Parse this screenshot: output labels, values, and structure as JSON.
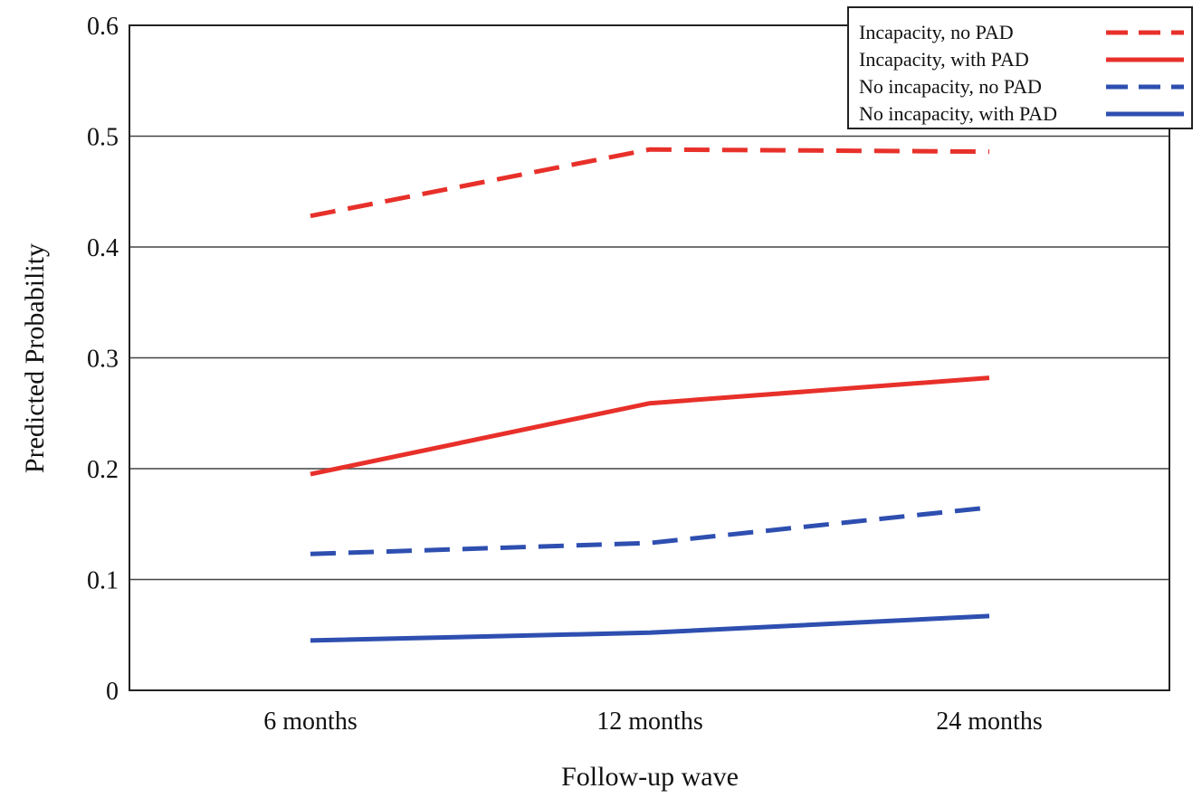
{
  "chart_data": {
    "type": "line",
    "title": "",
    "xlabel": "Follow-up wave",
    "ylabel": "Predicted Probability",
    "categories": [
      "6 months",
      "12 months",
      "24 months"
    ],
    "ylim": [
      0,
      0.6
    ],
    "yticks": [
      "0",
      "0.1",
      "0.2",
      "0.3",
      "0.4",
      "0.5",
      "0.6"
    ],
    "grid": "horizontal",
    "legend_position": "top-right",
    "series": [
      {
        "name": "Incapacity, no PAD",
        "color": "#e8302a",
        "style": "dashed",
        "values": [
          0.428,
          0.488,
          0.486
        ]
      },
      {
        "name": "Incapacity, with PAD",
        "color": "#e8302a",
        "style": "solid",
        "values": [
          0.195,
          0.259,
          0.282
        ]
      },
      {
        "name": "No incapacity, no PAD",
        "color": "#2e4fb0",
        "style": "dashed",
        "values": [
          0.123,
          0.133,
          0.165
        ]
      },
      {
        "name": "No incapacity, with PAD",
        "color": "#2e4fb0",
        "style": "solid",
        "values": [
          0.045,
          0.052,
          0.067
        ]
      }
    ]
  }
}
